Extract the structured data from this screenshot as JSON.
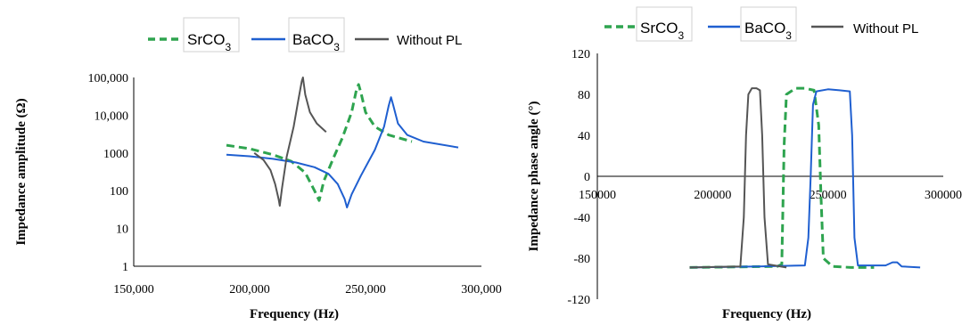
{
  "chart_data": [
    {
      "type": "line",
      "xlabel": "Frequency (Hz)",
      "ylabel": "Impedance amplitude (Ω)",
      "y_scale": "log",
      "xlim": [
        150000,
        300000
      ],
      "ylim": [
        1,
        100000
      ],
      "x_ticks": [
        "150,000",
        "200,000",
        "250,000",
        "300,000"
      ],
      "y_ticks": [
        "1",
        "10",
        "100",
        "1000",
        "10,000",
        "100,000"
      ],
      "legend_position": "top",
      "series": [
        {
          "name": "SrCO3",
          "color": "#2ea44f",
          "dash": "dashed",
          "x": [
            190000,
            200000,
            210000,
            218000,
            224000,
            228000,
            230000,
            232000,
            236000,
            240000,
            244000,
            246000,
            247000,
            248000,
            250000,
            254000,
            260000,
            270000
          ],
          "y": [
            1600,
            1300,
            900,
            600,
            300,
            100,
            55,
            180,
            700,
            2500,
            12000,
            45000,
            65000,
            40000,
            12000,
            5000,
            3000,
            2000
          ]
        },
        {
          "name": "BaCO3",
          "color": "#1f5fd0",
          "dash": "solid",
          "x": [
            190000,
            200000,
            210000,
            220000,
            228000,
            234000,
            238000,
            241000,
            242000,
            244000,
            248000,
            254000,
            258000,
            260000,
            261000,
            262000,
            264000,
            268000,
            275000,
            290000
          ],
          "y": [
            900,
            820,
            700,
            560,
            420,
            280,
            150,
            60,
            36,
            80,
            250,
            1200,
            5000,
            18000,
            30000,
            18000,
            6000,
            3000,
            2000,
            1400
          ]
        },
        {
          "name": "Without PL",
          "color": "#555555",
          "dash": "solid",
          "x": [
            202000,
            206000,
            209000,
            211000,
            212500,
            213000,
            214000,
            216000,
            219000,
            221000,
            222500,
            223000,
            224000,
            226000,
            229000,
            233000
          ],
          "y": [
            1000,
            650,
            350,
            150,
            60,
            40,
            120,
            800,
            5000,
            25000,
            80000,
            100000,
            35000,
            12000,
            6000,
            3600
          ]
        }
      ]
    },
    {
      "type": "line",
      "xlabel": "Frequency (Hz)",
      "ylabel": "Impedance phase angle (°)",
      "xlim": [
        150000,
        300000
      ],
      "ylim": [
        -120,
        120
      ],
      "x_ticks": [
        "150000",
        "200000",
        "250000",
        "300000"
      ],
      "y_ticks": [
        "-120",
        "-80",
        "-40",
        "0",
        "40",
        "80",
        "120"
      ],
      "legend_position": "top",
      "series": [
        {
          "name": "SrCO3",
          "color": "#2ea44f",
          "dash": "dashed",
          "x": [
            190000,
            228000,
            230000,
            231000,
            232000,
            236000,
            240000,
            244000,
            246000,
            247000,
            248000,
            252000,
            260000,
            270000
          ],
          "y": [
            -89,
            -88,
            -86,
            30,
            80,
            86,
            86,
            84,
            50,
            -20,
            -80,
            -88,
            -89,
            -89
          ],
          "series_note": ""
        },
        {
          "name": "BaCO3",
          "color": "#1f5fd0",
          "dash": "solid",
          "x": [
            190000,
            220000,
            240000,
            241500,
            242500,
            243500,
            245000,
            250000,
            255000,
            259500,
            260500,
            261500,
            263000,
            275000,
            278000,
            280000,
            282000,
            290000
          ],
          "y": [
            -89,
            -88,
            -87,
            -60,
            0,
            70,
            83,
            85,
            84,
            83,
            40,
            -60,
            -87,
            -87,
            -84,
            -84,
            -88,
            -89
          ]
        },
        {
          "name": "Without PL",
          "color": "#555555",
          "dash": "solid",
          "x": [
            190000,
            212000,
            213500,
            214500,
            215500,
            217000,
            219000,
            220500,
            221500,
            222500,
            224000,
            232000
          ],
          "y": [
            -89,
            -88,
            -40,
            40,
            80,
            86,
            86,
            84,
            40,
            -40,
            -86,
            -89
          ]
        }
      ]
    }
  ]
}
